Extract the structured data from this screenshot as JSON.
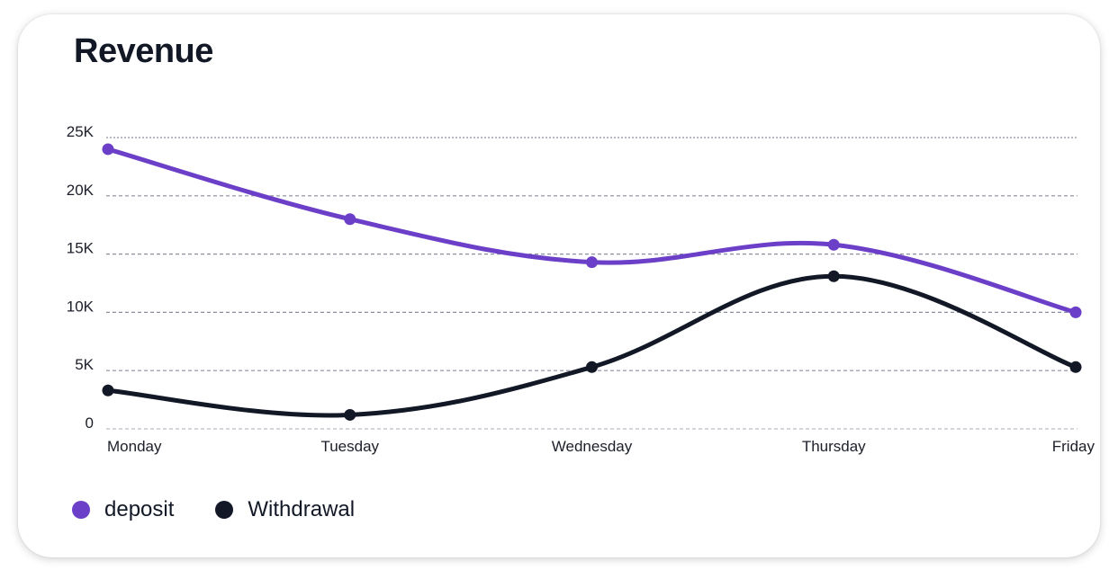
{
  "chart_data": {
    "type": "line",
    "title": "Revenue",
    "categories": [
      "Monday",
      "Tuesday",
      "Wednesday",
      "Thursday",
      "Friday"
    ],
    "y_ticks": [
      "0",
      "5K",
      "10K",
      "15K",
      "20K",
      "25K"
    ],
    "ylim": [
      0,
      25000
    ],
    "grid": true,
    "legend_position": "bottom-left",
    "series": [
      {
        "name": "deposit",
        "color": "#6b3fc7",
        "values": [
          24000,
          18000,
          14300,
          15800,
          10000
        ]
      },
      {
        "name": "Withdrawal",
        "color": "#121826",
        "values": [
          3300,
          1200,
          5300,
          13100,
          5300
        ]
      }
    ]
  }
}
